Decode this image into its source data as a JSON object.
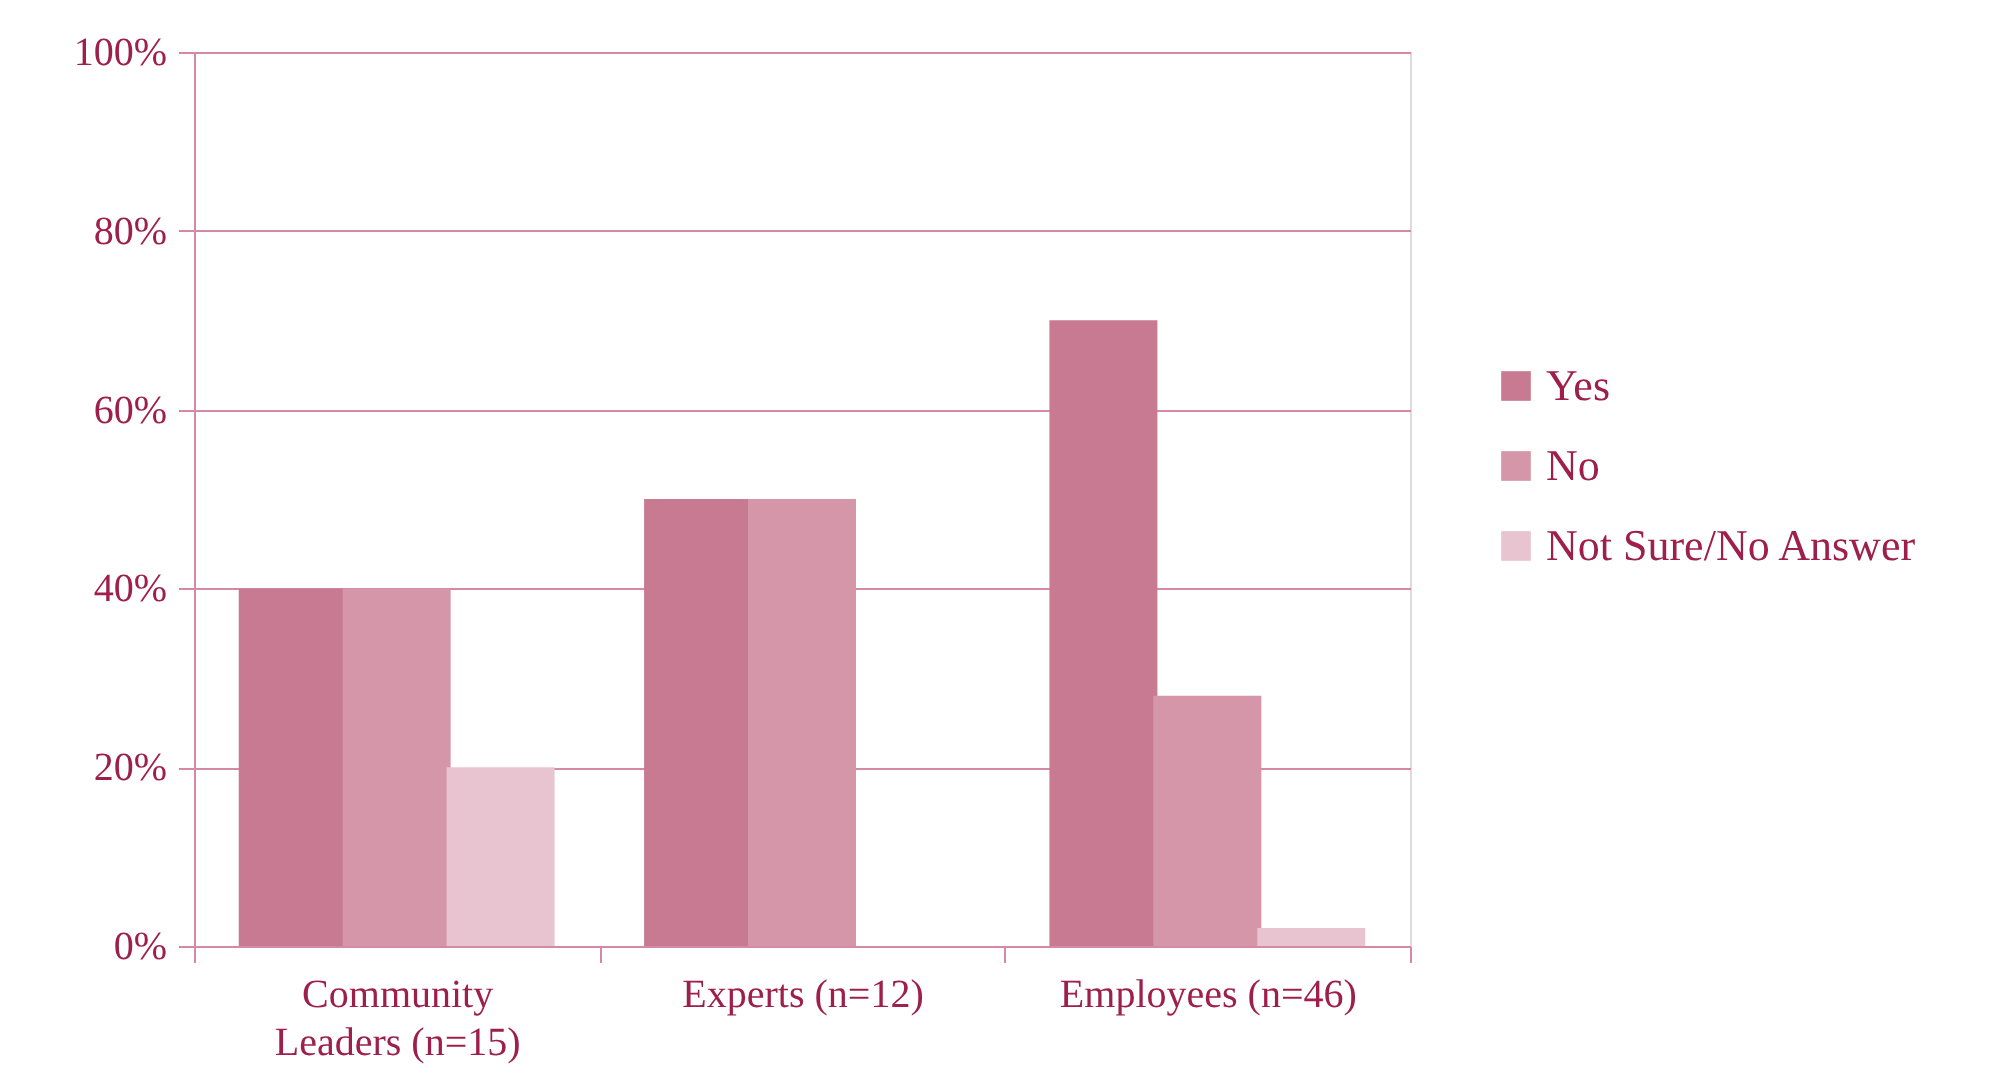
{
  "chart_data": {
    "type": "bar",
    "categories": [
      "Community\nLeaders (n=15)",
      "Experts (n=12)",
      "Employees (n=46)"
    ],
    "series": [
      {
        "name": "Yes",
        "color": "#c97a93",
        "values": [
          40,
          50,
          70
        ]
      },
      {
        "name": "No",
        "color": "#d696aa",
        "values": [
          40,
          50,
          28
        ]
      },
      {
        "name": "Not Sure/No Answer",
        "color": "#e8c4d0",
        "values": [
          20,
          0,
          2
        ]
      }
    ],
    "ylim": [
      0,
      100
    ],
    "yticks": [
      {
        "value": 0,
        "label": "0%"
      },
      {
        "value": 20,
        "label": "20%"
      },
      {
        "value": 40,
        "label": "40%"
      },
      {
        "value": 60,
        "label": "60%"
      },
      {
        "value": 80,
        "label": "80%"
      },
      {
        "value": 100,
        "label": "100%"
      }
    ],
    "grid": "y",
    "legend": "right"
  }
}
